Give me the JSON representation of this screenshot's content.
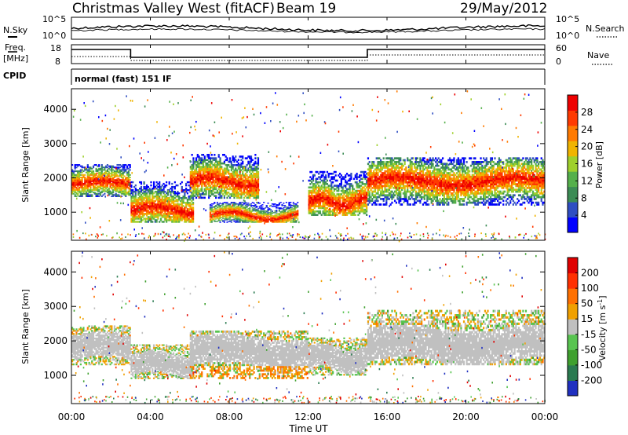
{
  "header": {
    "title": "Christmas Valley West (fitACF)",
    "beam": "Beam 19",
    "date": "29/May/2012"
  },
  "panels": {
    "nsky": {
      "label": "N.Sky",
      "ticks": [
        "10^5",
        "10^0"
      ],
      "right_ticks": [
        "10^5",
        "10^0"
      ],
      "right_label": "N.Search"
    },
    "freq": {
      "label_line1": "Freq.",
      "label_line2": "[MHz]",
      "ticks": [
        "18",
        "8"
      ],
      "right_ticks": [
        "60",
        "0"
      ],
      "right_label": "Nave"
    },
    "cpid": {
      "label": "CPID",
      "program": "normal (fast) 151 IF"
    }
  },
  "x_axis": {
    "label": "Time UT",
    "ticks": [
      "00:00",
      "04:00",
      "08:00",
      "12:00",
      "16:00",
      "20:00",
      "00:00"
    ]
  },
  "chart_data": [
    {
      "type": "heatmap",
      "name": "power",
      "ylabel": "Slant Range [km]",
      "yticks": [
        "4000",
        "3000",
        "2000",
        "1000"
      ],
      "ylim": [
        180,
        4600
      ],
      "xlim_hours": [
        0,
        24
      ],
      "colorbar": {
        "label": "Power [dB]",
        "ticks": [
          "28",
          "24",
          "20",
          "16",
          "12",
          "8",
          "4"
        ],
        "range": [
          0,
          32
        ],
        "colors": [
          "#0000ff",
          "#2f4ec2",
          "#3c8c55",
          "#55b04b",
          "#9fd02c",
          "#f0b400",
          "#ff7a00",
          "#ff3a00",
          "#ee0000"
        ]
      },
      "bands": [
        {
          "t0": 0.0,
          "t1": 3.0,
          "r0": 1450,
          "r1": 2400,
          "center": 1800
        },
        {
          "t0": 3.0,
          "t1": 6.2,
          "r0": 700,
          "r1": 1900,
          "center": 1050
        },
        {
          "t0": 6.0,
          "t1": 9.5,
          "r0": 1400,
          "r1": 2700,
          "center": 1900
        },
        {
          "t0": 7.0,
          "t1": 11.5,
          "r0": 700,
          "r1": 1300,
          "center": 900
        },
        {
          "t0": 12.0,
          "t1": 15.0,
          "r0": 900,
          "r1": 2200,
          "center": 1300
        },
        {
          "t0": 15.0,
          "t1": 24.0,
          "r0": 1200,
          "r1": 2600,
          "center": 1900
        }
      ]
    },
    {
      "type": "heatmap",
      "name": "velocity",
      "ylabel": "Slant Range [km]",
      "yticks": [
        "4000",
        "3000",
        "2000",
        "1000"
      ],
      "ylim": [
        180,
        4600
      ],
      "xlim_hours": [
        0,
        24
      ],
      "colorbar": {
        "label": "Velocity [m s",
        "label_sup": "-1",
        "label_end": "]",
        "ticks": [
          "200",
          "100",
          "50",
          "15",
          "-15",
          "-50",
          "-100",
          "-200"
        ],
        "colors": [
          "#2030c0",
          "#2a7a50",
          "#3fa02e",
          "#58c450",
          "#c0c0c0",
          "#f0a000",
          "#ff7000",
          "#ff3000",
          "#e00000"
        ]
      },
      "bands": [
        {
          "t0": 0.0,
          "t1": 3.0,
          "r0": 1300,
          "r1": 2450,
          "center": 1800
        },
        {
          "t0": 3.0,
          "t1": 6.2,
          "r0": 900,
          "r1": 1900,
          "center": 1300
        },
        {
          "t0": 6.0,
          "t1": 12.0,
          "r0": 900,
          "r1": 2300,
          "center": 1700
        },
        {
          "t0": 12.0,
          "t1": 15.0,
          "r0": 1000,
          "r1": 2100,
          "center": 1500
        },
        {
          "t0": 15.0,
          "t1": 24.0,
          "r0": 1300,
          "r1": 2900,
          "center": 1900
        }
      ]
    }
  ]
}
